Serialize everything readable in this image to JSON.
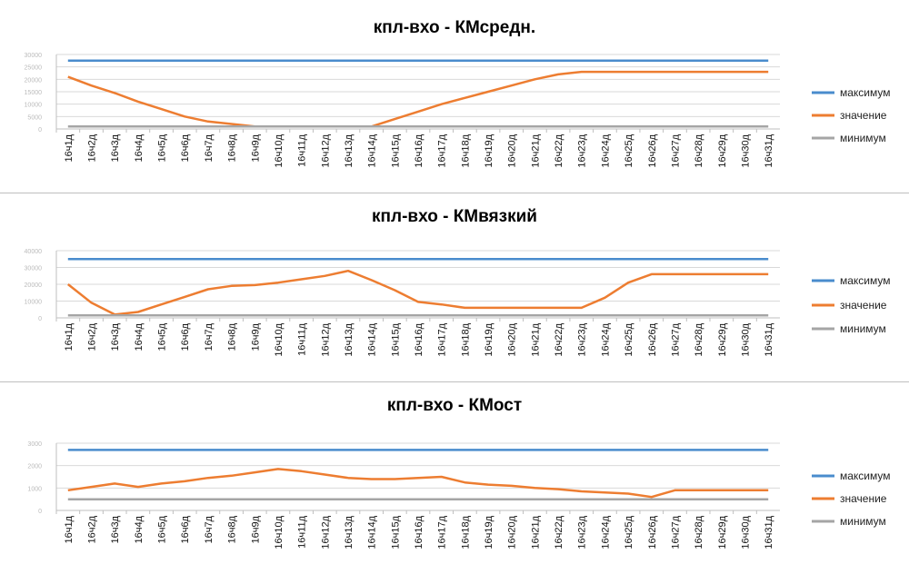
{
  "chart_data": [
    {
      "type": "line",
      "title": "кпл-вхо - КМсредн.",
      "categories": [
        "16ч1д",
        "16ч2д",
        "16ч3д",
        "16ч4д",
        "16ч5д",
        "16ч6д",
        "16ч7д",
        "16ч8д",
        "16ч9д",
        "16ч10д",
        "16ч11д",
        "16ч12д",
        "16ч13д",
        "16ч14д",
        "16ч15д",
        "16ч16д",
        "16ч17д",
        "16ч18д",
        "16ч19д",
        "16ч20д",
        "16ч21д",
        "16ч22д",
        "16ч23д",
        "16ч24д",
        "16ч25д",
        "16ч26д",
        "16ч27д",
        "16ч28д",
        "16ч29д",
        "16ч30д",
        "16ч31д"
      ],
      "ylim": [
        0,
        30000
      ],
      "yticks": [
        0,
        5000,
        10000,
        15000,
        20000,
        25000,
        30000
      ],
      "series": [
        {
          "name": "максимум",
          "color": "#4a8ccd",
          "values": [
            27500,
            27500,
            27500,
            27500,
            27500,
            27500,
            27500,
            27500,
            27500,
            27500,
            27500,
            27500,
            27500,
            27500,
            27500,
            27500,
            27500,
            27500,
            27500,
            27500,
            27500,
            27500,
            27500,
            27500,
            27500,
            27500,
            27500,
            27500,
            27500,
            27500,
            27500
          ]
        },
        {
          "name": "значение",
          "color": "#ed7d31",
          "values": [
            21000,
            17500,
            14500,
            11000,
            8000,
            5000,
            3000,
            2000,
            1000,
            1000,
            1000,
            1000,
            1000,
            1000,
            4000,
            7000,
            10000,
            12500,
            15000,
            17500,
            20000,
            22000,
            23000,
            23000,
            23000,
            23000,
            23000,
            23000,
            23000,
            23000,
            23000
          ]
        },
        {
          "name": "минимум",
          "color": "#a5a5a5",
          "values": [
            1000,
            1000,
            1000,
            1000,
            1000,
            1000,
            1000,
            1000,
            1000,
            1000,
            1000,
            1000,
            1000,
            1000,
            1000,
            1000,
            1000,
            1000,
            1000,
            1000,
            1000,
            1000,
            1000,
            1000,
            1000,
            1000,
            1000,
            1000,
            1000,
            1000,
            1000
          ]
        }
      ]
    },
    {
      "type": "line",
      "title": "кпл-вхо - КМвязкий",
      "categories": [
        "16ч1д",
        "16ч2д",
        "16ч3д",
        "16ч4д",
        "16ч5д",
        "16ч6д",
        "16ч7д",
        "16ч8д",
        "16ч9д",
        "16ч10д",
        "16ч11д",
        "16ч12д",
        "16ч13д",
        "16ч14д",
        "16ч15д",
        "16ч16д",
        "16ч17д",
        "16ч18д",
        "16ч19д",
        "16ч20д",
        "16ч21д",
        "16ч22д",
        "16ч23д",
        "16ч24д",
        "16ч25д",
        "16ч26д",
        "16ч27д",
        "16ч28д",
        "16ч29д",
        "16ч30д",
        "16ч31д"
      ],
      "ylim": [
        0,
        40000
      ],
      "yticks": [
        0,
        10000,
        20000,
        30000,
        40000
      ],
      "series": [
        {
          "name": "максимум",
          "color": "#4a8ccd",
          "values": [
            35000,
            35000,
            35000,
            35000,
            35000,
            35000,
            35000,
            35000,
            35000,
            35000,
            35000,
            35000,
            35000,
            35000,
            35000,
            35000,
            35000,
            35000,
            35000,
            35000,
            35000,
            35000,
            35000,
            35000,
            35000,
            35000,
            35000,
            35000,
            35000,
            35000,
            35000
          ]
        },
        {
          "name": "значение",
          "color": "#ed7d31",
          "values": [
            20000,
            9000,
            2000,
            3500,
            8000,
            12500,
            17000,
            19000,
            19500,
            21000,
            23000,
            25000,
            28000,
            22500,
            16500,
            9500,
            8000,
            6000,
            6000,
            6000,
            6000,
            6000,
            6000,
            12000,
            21000,
            26000,
            26000,
            26000,
            26000,
            26000,
            26000
          ]
        },
        {
          "name": "минимум",
          "color": "#a5a5a5",
          "values": [
            1500,
            1500,
            1500,
            1500,
            1500,
            1500,
            1500,
            1500,
            1500,
            1500,
            1500,
            1500,
            1500,
            1500,
            1500,
            1500,
            1500,
            1500,
            1500,
            1500,
            1500,
            1500,
            1500,
            1500,
            1500,
            1500,
            1500,
            1500,
            1500,
            1500,
            1500
          ]
        }
      ]
    },
    {
      "type": "line",
      "title": "кпл-вхо - КМост",
      "categories": [
        "16ч1д",
        "16ч2д",
        "16ч3д",
        "16ч4д",
        "16ч5д",
        "16ч6д",
        "16ч7д",
        "16ч8д",
        "16ч9д",
        "16ч10д",
        "16ч11д",
        "16ч12д",
        "16ч13д",
        "16ч14д",
        "16ч15д",
        "16ч16д",
        "16ч17д",
        "16ч18д",
        "16ч19д",
        "16ч20д",
        "16ч21д",
        "16ч22д",
        "16ч23д",
        "16ч24д",
        "16ч25д",
        "16ч26д",
        "16ч27д",
        "16ч28д",
        "16ч29д",
        "16ч30д",
        "16ч31д"
      ],
      "ylim": [
        0,
        3000
      ],
      "yticks": [
        0,
        1000,
        2000,
        3000
      ],
      "series": [
        {
          "name": "максимум",
          "color": "#4a8ccd",
          "values": [
            2700,
            2700,
            2700,
            2700,
            2700,
            2700,
            2700,
            2700,
            2700,
            2700,
            2700,
            2700,
            2700,
            2700,
            2700,
            2700,
            2700,
            2700,
            2700,
            2700,
            2700,
            2700,
            2700,
            2700,
            2700,
            2700,
            2700,
            2700,
            2700,
            2700,
            2700
          ]
        },
        {
          "name": "значение",
          "color": "#ed7d31",
          "values": [
            900,
            1050,
            1200,
            1050,
            1200,
            1300,
            1450,
            1550,
            1700,
            1850,
            1750,
            1600,
            1450,
            1400,
            1400,
            1450,
            1500,
            1250,
            1150,
            1100,
            1000,
            950,
            850,
            800,
            750,
            600,
            900,
            900,
            900,
            900,
            900
          ]
        },
        {
          "name": "минимум",
          "color": "#a5a5a5",
          "values": [
            500,
            500,
            500,
            500,
            500,
            500,
            500,
            500,
            500,
            500,
            500,
            500,
            500,
            500,
            500,
            500,
            500,
            500,
            500,
            500,
            500,
            500,
            500,
            500,
            500,
            500,
            500,
            500,
            500,
            500,
            500
          ]
        }
      ]
    }
  ]
}
